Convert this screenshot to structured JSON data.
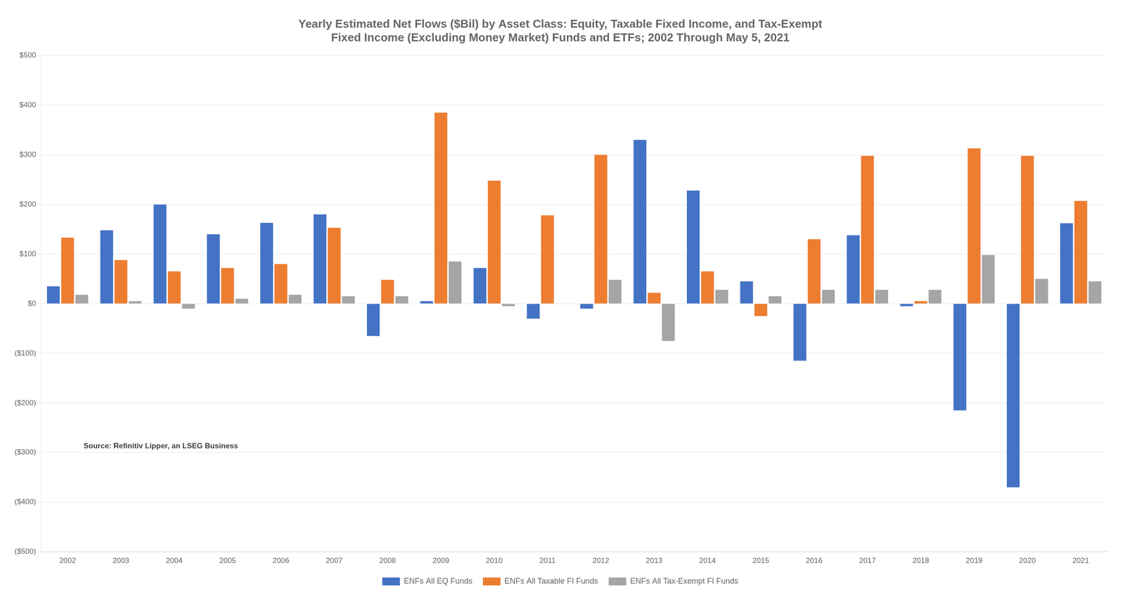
{
  "chart_data": {
    "type": "bar",
    "title": "Yearly Estimated Net Flows ($Bil) by Asset Class: Equity, Taxable Fixed Income, and Tax-Exempt\nFixed Income (Excluding Money Market) Funds and ETFs; 2002 Through May 5, 2021",
    "categories": [
      "2002",
      "2003",
      "2004",
      "2005",
      "2006",
      "2007",
      "2008",
      "2009",
      "2010",
      "2011",
      "2012",
      "2013",
      "2014",
      "2015",
      "2016",
      "2017",
      "2018",
      "2019",
      "2020",
      "2021"
    ],
    "series": [
      {
        "name": "ENFs All EQ Funds",
        "color": "#4472C4",
        "values": [
          35,
          148,
          200,
          140,
          163,
          180,
          -65,
          5,
          72,
          -30,
          -10,
          330,
          228,
          45,
          -115,
          138,
          -5,
          -215,
          -370,
          162
        ]
      },
      {
        "name": "ENFs All Taxable FI Funds",
        "color": "#ED7D31",
        "values": [
          133,
          88,
          65,
          72,
          80,
          153,
          48,
          385,
          248,
          178,
          300,
          22,
          65,
          -25,
          130,
          298,
          5,
          313,
          298,
          207
        ]
      },
      {
        "name": "ENFs All Tax-Exempt FI Funds",
        "color": "#A5A5A5",
        "values": [
          18,
          5,
          -10,
          10,
          18,
          15,
          15,
          85,
          -5,
          0,
          48,
          -75,
          28,
          15,
          28,
          28,
          28,
          98,
          50,
          45
        ]
      }
    ],
    "ylim": [
      -500,
      500
    ],
    "yticks": [
      {
        "value": -500,
        "label": "($500)"
      },
      {
        "value": -400,
        "label": "($400)"
      },
      {
        "value": -300,
        "label": "($300)"
      },
      {
        "value": -200,
        "label": "($200)"
      },
      {
        "value": -100,
        "label": "($100)"
      },
      {
        "value": 0,
        "label": "$0"
      },
      {
        "value": 100,
        "label": "$100"
      },
      {
        "value": 200,
        "label": "$200"
      },
      {
        "value": 300,
        "label": "$300"
      },
      {
        "value": 400,
        "label": "$400"
      },
      {
        "value": 500,
        "label": "$500"
      }
    ],
    "grid": true,
    "legend": "bottom",
    "annotation": "Source: Refinitiv Lipper, an LSEG Business"
  }
}
